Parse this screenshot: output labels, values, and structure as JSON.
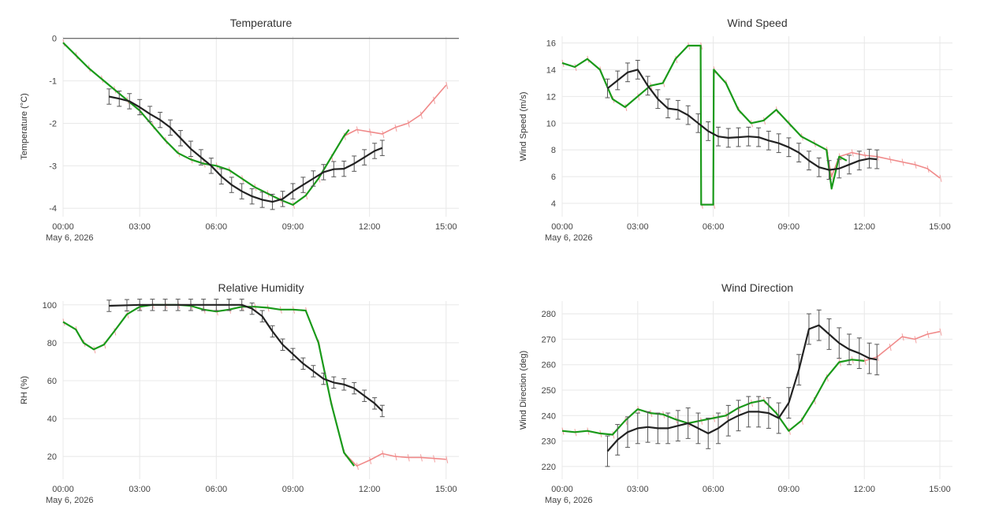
{
  "colors": {
    "black": "#222222",
    "green": "#1a9a1a",
    "red": "#f08a8a",
    "brown": "#8a5a1a",
    "grid": "#e8e8e8"
  },
  "x_ticks": [
    "00:00",
    "03:00",
    "06:00",
    "09:00",
    "12:00",
    "15:00"
  ],
  "date_label": "May 6, 2026",
  "chart_data": [
    {
      "type": "line",
      "title": "Temperature",
      "ylabel": "Temperature (°C)",
      "xlim": [
        0,
        15.5
      ],
      "ylim": [
        -4.2,
        0.05
      ],
      "yticks": [
        0,
        -1,
        -2,
        -3,
        -4
      ],
      "zero_line": true,
      "series": [
        {
          "color": "red",
          "x": [
            0,
            0.5,
            1,
            1.5,
            2,
            2.5,
            3,
            3.5,
            4,
            4.5,
            5,
            5.5,
            6,
            6.5,
            7,
            7.5,
            8,
            8.5,
            9,
            9.5,
            10,
            10.5,
            11,
            11.5,
            12,
            12.5,
            13,
            13.5,
            14,
            14.5,
            15
          ],
          "y": [
            -0.1,
            -0.4,
            -0.7,
            -0.95,
            -1.2,
            -1.45,
            -1.7,
            -2.05,
            -2.4,
            -2.7,
            -2.85,
            -2.95,
            -3.0,
            -3.1,
            -3.3,
            -3.5,
            -3.65,
            -3.8,
            -3.92,
            -3.7,
            -3.3,
            -2.8,
            -2.3,
            -2.15,
            -2.2,
            -2.25,
            -2.1,
            -2.0,
            -1.8,
            -1.45,
            -1.1
          ]
        },
        {
          "color": "green",
          "x": [
            0,
            0.5,
            1,
            1.5,
            2,
            2.5,
            3,
            3.5,
            4,
            4.5,
            5,
            5.5,
            6,
            6.5,
            7,
            7.5,
            8,
            8.5,
            9,
            9.5,
            10,
            10.5,
            11,
            11.2
          ],
          "y": [
            -0.1,
            -0.4,
            -0.7,
            -0.95,
            -1.2,
            -1.45,
            -1.7,
            -2.05,
            -2.4,
            -2.7,
            -2.85,
            -2.95,
            -3.0,
            -3.1,
            -3.3,
            -3.5,
            -3.65,
            -3.8,
            -3.92,
            -3.7,
            -3.3,
            -2.8,
            -2.3,
            -2.15
          ]
        },
        {
          "color": "black",
          "x": [
            1.8,
            2.2,
            2.6,
            3,
            3.4,
            3.8,
            4.2,
            4.6,
            5,
            5.4,
            5.8,
            6.2,
            6.6,
            7,
            7.4,
            7.8,
            8.2,
            8.6,
            9,
            9.4,
            9.8,
            10.2,
            10.6,
            11,
            11.4,
            11.8,
            12.2,
            12.5
          ],
          "y": [
            -1.37,
            -1.42,
            -1.48,
            -1.62,
            -1.78,
            -1.92,
            -2.1,
            -2.35,
            -2.6,
            -2.8,
            -3.0,
            -3.25,
            -3.45,
            -3.6,
            -3.72,
            -3.8,
            -3.85,
            -3.78,
            -3.6,
            -3.45,
            -3.3,
            -3.15,
            -3.08,
            -3.07,
            -2.95,
            -2.8,
            -2.65,
            -2.58
          ],
          "err": 0.18
        }
      ]
    },
    {
      "type": "line",
      "title": "Wind Speed",
      "ylabel": "Wind Speed (m/s)",
      "xlim": [
        0,
        15.5
      ],
      "ylim": [
        3.0,
        16.5
      ],
      "yticks": [
        4,
        6,
        8,
        10,
        12,
        14,
        16
      ],
      "series": [
        {
          "color": "red",
          "x": [
            0,
            0.5,
            1,
            1.5,
            2,
            2.5,
            3,
            3.5,
            4,
            4.5,
            5,
            5.5,
            5.52,
            6,
            6.02,
            6.5,
            7,
            7.5,
            8,
            8.5,
            9,
            9.5,
            10,
            10.5,
            10.7,
            11,
            11.5,
            12,
            12.5,
            13,
            13.5,
            14,
            14.5,
            15
          ],
          "y": [
            14.5,
            14.2,
            14.8,
            14.0,
            11.8,
            11.2,
            12.0,
            12.8,
            13.0,
            14.8,
            15.8,
            15.8,
            3.9,
            3.9,
            14.0,
            13.0,
            11.0,
            10.0,
            10.2,
            11.0,
            10.0,
            9.0,
            8.5,
            8.0,
            6.0,
            7.5,
            7.8,
            7.6,
            7.5,
            7.3,
            7.1,
            6.9,
            6.6,
            5.9
          ]
        },
        {
          "color": "green",
          "x": [
            0,
            0.5,
            1,
            1.5,
            2,
            2.5,
            3,
            3.5,
            4,
            4.5,
            5,
            5.5,
            5.52,
            6,
            6.02,
            6.5,
            7,
            7.5,
            8,
            8.5,
            9,
            9.5,
            10,
            10.5,
            10.7,
            11,
            11.3
          ],
          "y": [
            14.5,
            14.2,
            14.8,
            14.0,
            11.8,
            11.2,
            12.0,
            12.8,
            13.0,
            14.8,
            15.8,
            15.8,
            3.9,
            3.9,
            14.0,
            13.0,
            11.0,
            10.0,
            10.2,
            11.0,
            10.0,
            9.0,
            8.5,
            8.0,
            5.1,
            7.5,
            7.2
          ]
        },
        {
          "color": "black",
          "x": [
            1.8,
            2.2,
            2.6,
            3,
            3.4,
            3.8,
            4.2,
            4.6,
            5,
            5.4,
            5.8,
            6.2,
            6.6,
            7,
            7.4,
            7.8,
            8.2,
            8.6,
            9,
            9.4,
            9.8,
            10.2,
            10.6,
            11,
            11.4,
            11.8,
            12.2,
            12.5
          ],
          "y": [
            12.6,
            13.2,
            13.8,
            14.0,
            12.8,
            11.8,
            11.1,
            11.0,
            10.6,
            10.0,
            9.4,
            9.0,
            8.9,
            8.95,
            9.0,
            8.95,
            8.7,
            8.5,
            8.2,
            7.8,
            7.2,
            6.7,
            6.5,
            6.6,
            6.9,
            7.2,
            7.35,
            7.3
          ],
          "err": 0.7
        }
      ]
    },
    {
      "type": "line",
      "title": "Relative Humidity",
      "ylabel": "RH (%)",
      "xlim": [
        0,
        15.5
      ],
      "ylim": [
        8,
        102
      ],
      "yticks": [
        20,
        40,
        60,
        80,
        100
      ],
      "series": [
        {
          "color": "red",
          "x": [
            0,
            0.5,
            0.8,
            1.2,
            1.6,
            2,
            2.5,
            3,
            3.5,
            4,
            4.5,
            5,
            5.5,
            6,
            6.5,
            7,
            7.5,
            8,
            8.5,
            9,
            9.5,
            10,
            10.5,
            11,
            11.5,
            12,
            12.5,
            13,
            13.5,
            14,
            14.5,
            15
          ],
          "y": [
            91,
            87,
            80,
            76.5,
            79,
            86,
            95,
            99,
            100,
            100,
            100,
            99.5,
            97.5,
            96.5,
            97.5,
            99,
            99,
            98.5,
            97.5,
            97.5,
            97,
            80,
            48,
            22,
            15,
            18,
            21.5,
            20,
            19.5,
            19.5,
            19,
            18.5
          ]
        },
        {
          "color": "green",
          "x": [
            0,
            0.5,
            0.8,
            1.2,
            1.6,
            2,
            2.5,
            3,
            3.5,
            4,
            4.5,
            5,
            5.5,
            6,
            6.5,
            7,
            7.5,
            8,
            8.5,
            9,
            9.5,
            10,
            10.5,
            11,
            11.4
          ],
          "y": [
            91,
            87,
            80,
            76.5,
            79,
            86,
            95,
            99,
            100,
            100,
            100,
            99.5,
            97.5,
            96.5,
            97.5,
            99,
            99,
            98.5,
            97.5,
            97.5,
            97,
            80,
            48,
            22,
            15
          ]
        },
        {
          "color": "black",
          "x": [
            1.8,
            2.5,
            3,
            3.5,
            4,
            4.5,
            5,
            5.5,
            6,
            6.5,
            7,
            7.4,
            7.8,
            8.2,
            8.6,
            9,
            9.4,
            9.8,
            10.2,
            10.6,
            11,
            11.4,
            11.8,
            12.2,
            12.5
          ],
          "y": [
            99.5,
            99.8,
            100,
            100,
            100,
            100,
            100,
            100,
            100,
            100,
            100,
            98,
            94,
            86,
            79,
            74,
            69,
            65,
            61,
            59,
            58,
            56,
            52,
            48,
            44
          ],
          "err": 3
        }
      ]
    },
    {
      "type": "line",
      "title": "Wind Direction",
      "ylabel": "Wind Direction (deg)",
      "xlim": [
        0,
        15.5
      ],
      "ylim": [
        215,
        285
      ],
      "yticks": [
        220,
        230,
        240,
        250,
        260,
        270,
        280
      ],
      "series": [
        {
          "color": "red",
          "x": [
            0,
            0.5,
            1,
            1.5,
            2,
            2.5,
            3,
            3.5,
            4,
            4.5,
            5,
            5.5,
            6,
            6.5,
            7,
            7.5,
            8,
            8.5,
            9,
            9.5,
            10,
            10.5,
            11,
            11.5,
            12,
            12.5,
            13,
            13.5,
            14,
            14.5,
            15
          ],
          "y": [
            234,
            233.5,
            234,
            233,
            232.5,
            238,
            242.5,
            241,
            240.5,
            238.5,
            237,
            238,
            239,
            240,
            243,
            245,
            246,
            241,
            234,
            238,
            246,
            255,
            261,
            262,
            261.5,
            263,
            267,
            271,
            270,
            272,
            273
          ]
        },
        {
          "color": "green",
          "x": [
            0,
            0.5,
            1,
            1.5,
            2,
            2.5,
            3,
            3.5,
            4,
            4.5,
            5,
            5.5,
            6,
            6.5,
            7,
            7.5,
            8,
            8.5,
            9,
            9.5,
            10,
            10.5,
            11,
            11.5,
            12
          ],
          "y": [
            234,
            233.5,
            234,
            233,
            232.5,
            238,
            242.5,
            241,
            240.5,
            238.5,
            237,
            238,
            239,
            240,
            243,
            245,
            246,
            241,
            234,
            238,
            246,
            255,
            261,
            262,
            261.5
          ]
        },
        {
          "color": "black",
          "x": [
            1.8,
            2.2,
            2.6,
            3,
            3.4,
            3.8,
            4.2,
            4.6,
            5,
            5.4,
            5.8,
            6.2,
            6.6,
            7,
            7.4,
            7.8,
            8.2,
            8.6,
            9,
            9.4,
            9.8,
            10.2,
            10.6,
            11,
            11.4,
            11.8,
            12.2,
            12.5
          ],
          "y": [
            226,
            230.5,
            233.5,
            235,
            235.5,
            235,
            235,
            236,
            237,
            235,
            233,
            235,
            238,
            240,
            241.5,
            241.5,
            241,
            239,
            245,
            258,
            274,
            275.5,
            272,
            268.5,
            266,
            264.5,
            262.5,
            262
          ],
          "err": 6
        }
      ]
    }
  ]
}
